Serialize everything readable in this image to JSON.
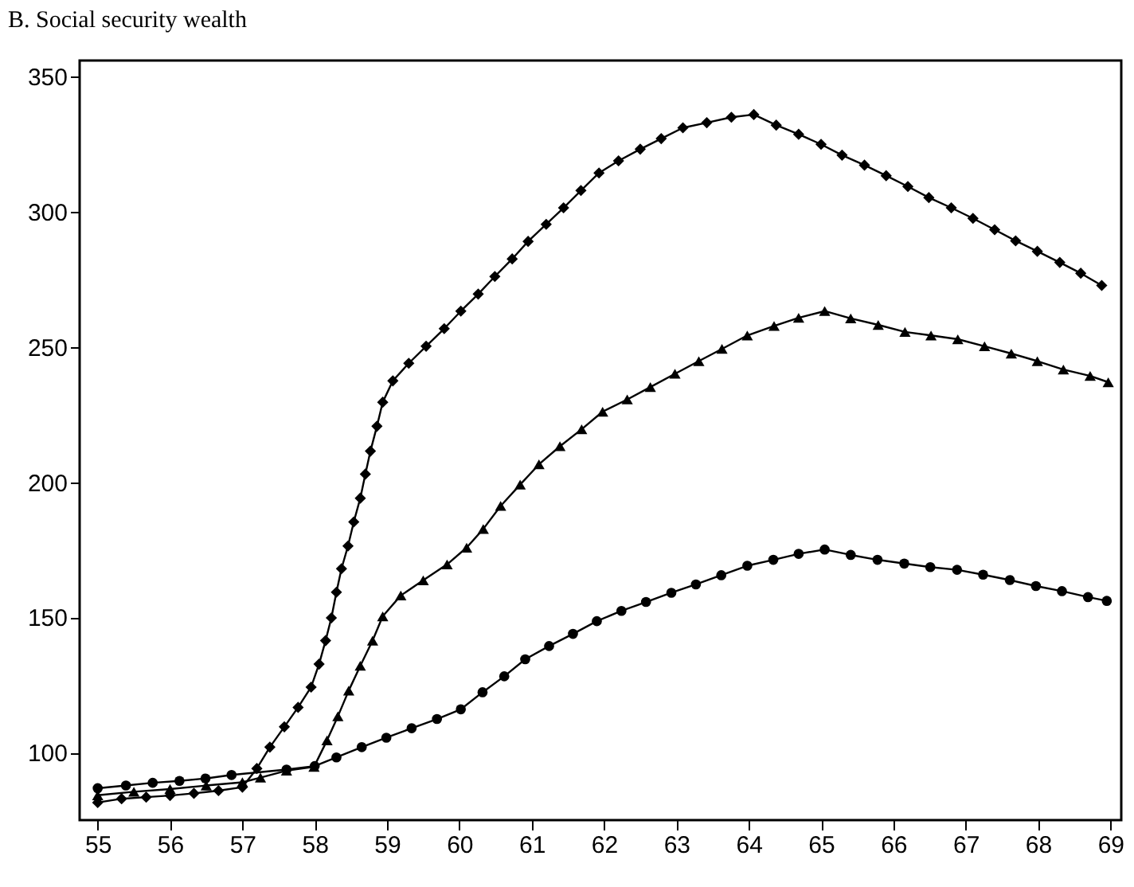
{
  "chart_data": {
    "type": "line",
    "title": "B. Social security wealth",
    "xlim": [
      54.75,
      69.15
    ],
    "ylim": [
      75,
      356
    ],
    "xticks": [
      55,
      56,
      57,
      58,
      59,
      60,
      61,
      62,
      63,
      64,
      65,
      66,
      67,
      68,
      69
    ],
    "yticks": [
      100,
      150,
      200,
      250,
      300,
      350
    ],
    "grid": false,
    "line_style": "solid",
    "series": [
      {
        "color": "#000000",
        "marker": "diamond",
        "x": [
          55,
          55.33,
          55.67,
          56,
          56.33,
          56.67,
          57,
          57.2,
          57.38,
          57.58,
          57.77,
          57.95,
          58.06,
          58.15,
          58.23,
          58.3,
          58.37,
          58.46,
          58.54,
          58.63,
          58.7,
          58.77,
          58.86,
          58.94,
          59.08,
          59.3,
          59.54,
          59.79,
          60.02,
          60.26,
          60.49,
          60.73,
          60.95,
          61.2,
          61.44,
          61.68,
          61.93,
          62.2,
          62.5,
          62.79,
          63.09,
          63.42,
          63.76,
          64.07,
          64.38,
          64.69,
          65,
          65.29,
          65.6,
          65.9,
          66.2,
          66.49,
          66.8,
          67.1,
          67.4,
          67.69,
          67.99,
          68.3,
          68.59,
          68.88
        ],
        "values": [
          81.5,
          82.9,
          83.5,
          84.1,
          84.9,
          85.9,
          87.2,
          94.1,
          102,
          109.5,
          116.7,
          124.2,
          132.7,
          141.4,
          149.8,
          159.3,
          168,
          176.4,
          185.3,
          194.1,
          203,
          211.5,
          220.7,
          229.6,
          237.5,
          244,
          250.3,
          256.8,
          263.3,
          269.6,
          276.1,
          282.6,
          289.1,
          295.4,
          301.5,
          307.9,
          314.4,
          318.9,
          323.2,
          327.1,
          331.1,
          333,
          335,
          336,
          332.1,
          328.7,
          325,
          321,
          317.3,
          313.4,
          309.4,
          305.3,
          301.5,
          297.6,
          293.4,
          289.3,
          285.4,
          281.3,
          277.3,
          272.8
        ]
      },
      {
        "color": "#000000",
        "marker": "triangle",
        "x": [
          55,
          55.5,
          56,
          56.5,
          57,
          57.25,
          57.61,
          57.99,
          58.17,
          58.32,
          58.47,
          58.63,
          58.8,
          58.94,
          59.19,
          59.5,
          59.83,
          60.1,
          60.33,
          60.57,
          60.84,
          61.1,
          61.39,
          61.69,
          61.98,
          62.32,
          62.64,
          62.98,
          63.31,
          63.63,
          63.98,
          64.35,
          64.69,
          65.05,
          65.41,
          65.79,
          66.16,
          66.52,
          66.89,
          67.26,
          67.63,
          67.99,
          68.35,
          68.72,
          68.97
        ],
        "values": [
          84.2,
          85.5,
          86.5,
          87.8,
          89,
          90.7,
          93.3,
          94.7,
          104.5,
          113.4,
          122.9,
          132.1,
          141.4,
          150.4,
          158.1,
          163.7,
          169.6,
          175.8,
          182.7,
          191.2,
          199.1,
          206.6,
          213.3,
          219.6,
          226.1,
          230.6,
          235.2,
          240.1,
          244.8,
          249.3,
          254.3,
          257.8,
          260.8,
          263.3,
          260.6,
          258.2,
          255.6,
          254.3,
          252.9,
          250.3,
          247.6,
          244.8,
          241.7,
          239.3,
          237
        ]
      },
      {
        "color": "#000000",
        "marker": "circle",
        "x": [
          55,
          55.39,
          55.76,
          56.13,
          56.49,
          56.85,
          57.61,
          58,
          58.3,
          58.65,
          58.99,
          59.34,
          59.69,
          60.02,
          60.32,
          60.62,
          60.91,
          61.24,
          61.57,
          61.9,
          62.24,
          62.58,
          62.93,
          63.27,
          63.62,
          63.98,
          64.34,
          64.69,
          65.05,
          65.41,
          65.78,
          66.15,
          66.51,
          66.88,
          67.24,
          67.61,
          67.97,
          68.33,
          68.69,
          68.95
        ],
        "values": [
          86.8,
          87.8,
          88.8,
          89.5,
          90.4,
          91.7,
          93.7,
          95,
          98.2,
          102,
          105.5,
          109,
          112.4,
          116,
          122.3,
          128.2,
          134.5,
          139.4,
          143.9,
          148.6,
          152.4,
          155.7,
          159.1,
          162.2,
          165.6,
          169.1,
          171.3,
          173.5,
          175.1,
          173.1,
          171.3,
          169.9,
          168.6,
          167.6,
          165.8,
          163.8,
          161.6,
          159.7,
          157.5,
          156.1
        ]
      }
    ]
  }
}
